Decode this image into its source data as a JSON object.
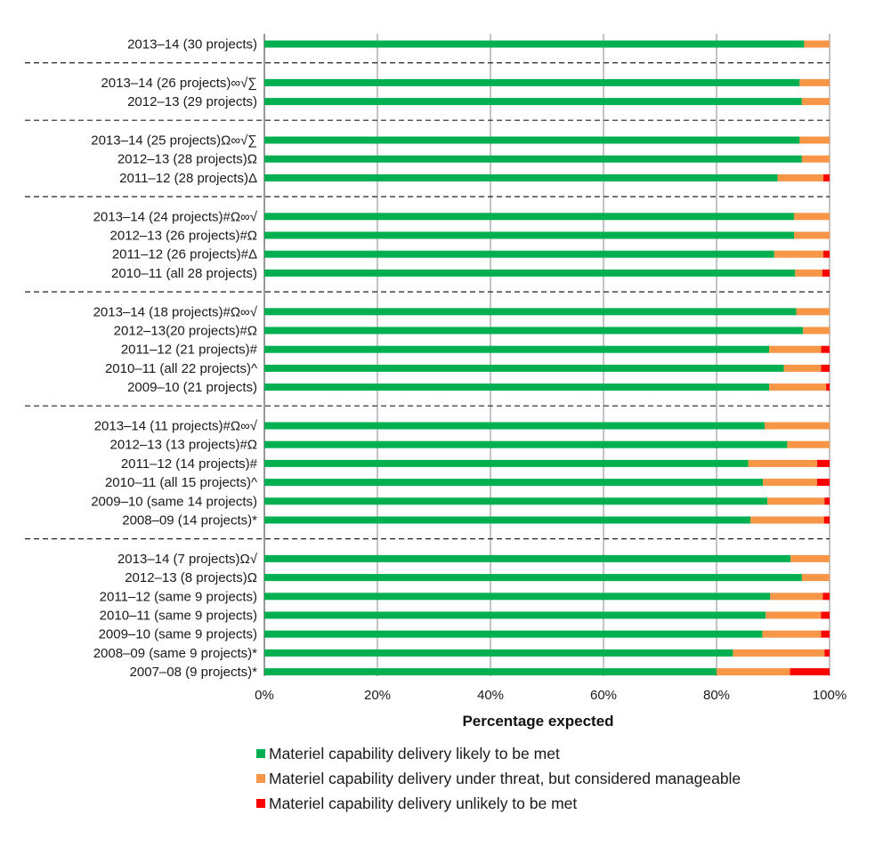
{
  "chart_data": {
    "type": "bar",
    "orientation": "horizontal",
    "stacked": true,
    "xlabel": "Percentage expected",
    "xlim": [
      0,
      100
    ],
    "x_ticks": [
      "0%",
      "20%",
      "40%",
      "60%",
      "80%",
      "100%"
    ],
    "grid": true,
    "legend_position": "bottom",
    "series": [
      {
        "name": "Materiel capability delivery likely to be met",
        "color": "#00b050"
      },
      {
        "name": "Materiel capability delivery under threat, but considered manageable",
        "color": "#f79646"
      },
      {
        "name": "Materiel capability delivery unlikely to be met",
        "color": "#ff0000"
      }
    ],
    "groups": [
      {
        "rows": [
          {
            "label": "2013–14 (30 projects)",
            "values": [
              95.5,
              4.5,
              0
            ]
          }
        ]
      },
      {
        "rows": [
          {
            "label": "2013–14 (26 projects)∞√∑",
            "values": [
              94.7,
              5.3,
              0
            ]
          },
          {
            "label": "2012–13 (29 projects)",
            "values": [
              95.1,
              4.9,
              0
            ]
          }
        ]
      },
      {
        "rows": [
          {
            "label": "2013–14 (25 projects)Ω∞√∑",
            "values": [
              94.7,
              5.3,
              0
            ]
          },
          {
            "label": "2012–13 (28 projects)Ω",
            "values": [
              95.1,
              4.9,
              0
            ]
          },
          {
            "label": "2011–12 (28 projects)Δ",
            "values": [
              90.8,
              8.1,
              1.1
            ]
          }
        ]
      },
      {
        "rows": [
          {
            "label": "2013–14 (24 projects)#Ω∞√",
            "values": [
              93.7,
              6.3,
              0
            ]
          },
          {
            "label": "2012–13 (26 projects)#Ω",
            "values": [
              93.7,
              6.3,
              0
            ]
          },
          {
            "label": "2011–12 (26 projects)#Δ",
            "values": [
              90.2,
              8.7,
              1.1
            ]
          },
          {
            "label": "2010–11 (all 28 projects)",
            "values": [
              93.9,
              4.8,
              1.3
            ]
          }
        ]
      },
      {
        "rows": [
          {
            "label": "2013–14 (18 projects)#Ω∞√",
            "values": [
              94.1,
              5.9,
              0
            ]
          },
          {
            "label": "2012–13(20 projects)#Ω",
            "values": [
              95.3,
              4.7,
              0
            ]
          },
          {
            "label": "2011–12 (21 projects)#",
            "values": [
              89.3,
              9.2,
              1.5
            ]
          },
          {
            "label": "2010–11 (all 22 projects)^",
            "values": [
              91.9,
              6.6,
              1.5
            ]
          },
          {
            "label": "2009–10 (21 projects)",
            "values": [
              89.3,
              10.1,
              0.6
            ]
          }
        ]
      },
      {
        "rows": [
          {
            "label": "2013–14 (11 projects)#Ω∞√",
            "values": [
              88.5,
              11.5,
              0
            ]
          },
          {
            "label": "2012–13 (13 projects)#Ω",
            "values": [
              92.5,
              7.5,
              0
            ]
          },
          {
            "label": "2011–12 (14 projects)#",
            "values": [
              85.6,
              12.2,
              2.2
            ]
          },
          {
            "label": "2010–11 (all 15 projects)^",
            "values": [
              88.2,
              9.6,
              2.2
            ]
          },
          {
            "label": "2009–10 (same 14 projects)",
            "values": [
              89.0,
              10.1,
              0.9
            ]
          },
          {
            "label": "2008–09 (14 projects)*",
            "values": [
              86.0,
              13.0,
              1.0
            ]
          }
        ]
      },
      {
        "rows": [
          {
            "label": "2013–14 (7 projects)Ω√",
            "values": [
              93.1,
              6.9,
              0
            ]
          },
          {
            "label": "2012–13 (8 projects)Ω",
            "values": [
              95.1,
              4.9,
              0
            ]
          },
          {
            "label": "2011–12 (same 9 projects)",
            "values": [
              89.5,
              9.3,
              1.2
            ]
          },
          {
            "label": "2010–11 (same 9 projects)",
            "values": [
              88.7,
              9.8,
              1.5
            ]
          },
          {
            "label": "2009–10 (same 9 projects)",
            "values": [
              88.1,
              10.4,
              1.5
            ]
          },
          {
            "label": "2008–09 (same 9 projects)*",
            "values": [
              82.9,
              16.2,
              0.9
            ]
          },
          {
            "label": "2007–08 (9 projects)*",
            "values": [
              80.0,
              13.0,
              7.0
            ]
          }
        ]
      }
    ]
  }
}
